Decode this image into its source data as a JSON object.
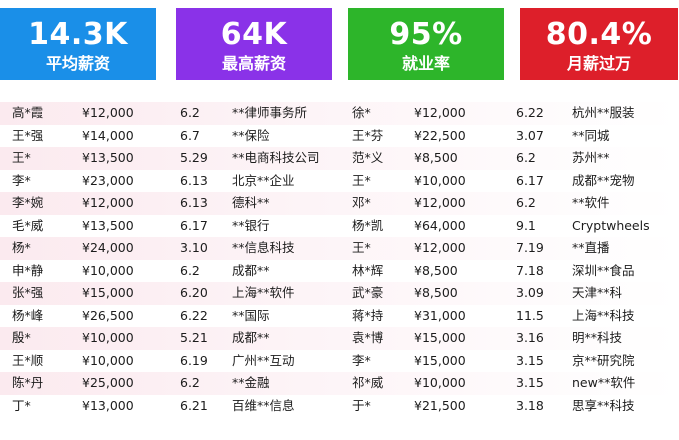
{
  "stats": [
    {
      "value": "14.3K",
      "label": "平均薪资",
      "color": "#1a8fe8"
    },
    {
      "value": "64K",
      "label": "最高薪资",
      "color": "#8a32e8"
    },
    {
      "value": "95%",
      "label": "就业率",
      "color": "#2db52a"
    },
    {
      "value": "80.4%",
      "label": "月薪过万",
      "color": "#dd1f2a"
    }
  ],
  "rows": [
    {
      "left": {
        "name": "高*霞",
        "salary": "¥12,000",
        "date": "6.2",
        "company": "**律师事务所"
      },
      "right": {
        "name": "徐*",
        "salary": "¥12,000",
        "date": "6.22",
        "company": "杭州**服装"
      }
    },
    {
      "left": {
        "name": "王*强",
        "salary": "¥14,000",
        "date": "6.7",
        "company": "**保险"
      },
      "right": {
        "name": "王*芬",
        "salary": "¥22,500",
        "date": "3.07",
        "company": "**同城"
      }
    },
    {
      "left": {
        "name": "王*",
        "salary": "¥13,500",
        "date": "5.29",
        "company": "**电商科技公司"
      },
      "right": {
        "name": "范*义",
        "salary": "¥8,500",
        "date": "6.2",
        "company": "苏州**"
      }
    },
    {
      "left": {
        "name": "李*",
        "salary": "¥23,000",
        "date": "6.13",
        "company": "北京**企业"
      },
      "right": {
        "name": "王*",
        "salary": "¥10,000",
        "date": "6.17",
        "company": "成都**宠物"
      }
    },
    {
      "left": {
        "name": "李*婉",
        "salary": "¥12,000",
        "date": "6.13",
        "company": "德科**"
      },
      "right": {
        "name": "邓*",
        "salary": "¥12,000",
        "date": "6.2",
        "company": "**软件"
      }
    },
    {
      "left": {
        "name": "毛*威",
        "salary": "¥13,500",
        "date": "6.17",
        "company": "**银行"
      },
      "right": {
        "name": "杨*凯",
        "salary": "¥64,000",
        "date": "9.1",
        "company": "Cryptwheels"
      }
    },
    {
      "left": {
        "name": "杨*",
        "salary": "¥24,000",
        "date": "3.10",
        "company": "**信息科技"
      },
      "right": {
        "name": "王*",
        "salary": "¥12,000",
        "date": "7.19",
        "company": "**直播"
      }
    },
    {
      "left": {
        "name": "申*静",
        "salary": "¥10,000",
        "date": "6.2",
        "company": "成都**"
      },
      "right": {
        "name": "林*辉",
        "salary": "¥8,500",
        "date": "7.18",
        "company": "深圳**食品"
      }
    },
    {
      "left": {
        "name": "张*强",
        "salary": "¥15,000",
        "date": "6.20",
        "company": "上海**软件"
      },
      "right": {
        "name": "武*豪",
        "salary": "¥8,500",
        "date": "3.09",
        "company": "天津**科"
      }
    },
    {
      "left": {
        "name": "杨*峰",
        "salary": "¥26,500",
        "date": "6.22",
        "company": "**国际"
      },
      "right": {
        "name": "蒋*持",
        "salary": "¥31,000",
        "date": "11.5",
        "company": "上海**科技"
      }
    },
    {
      "left": {
        "name": "殷*",
        "salary": "¥10,000",
        "date": "5.21",
        "company": "成都**"
      },
      "right": {
        "name": "袁*博",
        "salary": "¥15,000",
        "date": "3.16",
        "company": "明**科技"
      }
    },
    {
      "left": {
        "name": "王*顺",
        "salary": "¥10,000",
        "date": "6.19",
        "company": "广州**互动"
      },
      "right": {
        "name": "李*",
        "salary": "¥15,000",
        "date": "3.15",
        "company": "京**研究院"
      }
    },
    {
      "left": {
        "name": "陈*丹",
        "salary": "¥25,000",
        "date": "6.2",
        "company": "**金融"
      },
      "right": {
        "name": "祁*威",
        "salary": "¥10,000",
        "date": "3.15",
        "company": "new**软件"
      }
    },
    {
      "left": {
        "name": "丁*",
        "salary": "¥13,000",
        "date": "6.21",
        "company": "百维**信息"
      },
      "right": {
        "name": "于*",
        "salary": "¥21,500",
        "date": "3.18",
        "company": "思享**科技"
      }
    }
  ]
}
